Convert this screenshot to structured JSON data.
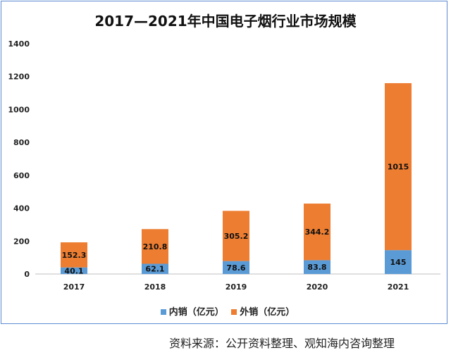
{
  "chart_data": {
    "type": "bar",
    "stacked": true,
    "title": "2017—2021年中国电子烟行业市场规模",
    "categories": [
      "2017",
      "2018",
      "2019",
      "2020",
      "2021"
    ],
    "series": [
      {
        "name": "内销（亿元）",
        "values": [
          40.1,
          62.1,
          78.6,
          83.8,
          145
        ],
        "color": "#5b9bd5"
      },
      {
        "name": "外销（亿元）",
        "values": [
          152.3,
          210.8,
          305.2,
          344.2,
          1015
        ],
        "color": "#ed7d31"
      }
    ],
    "ylim": [
      0,
      1400
    ],
    "yticks": [
      "0",
      "200",
      "400",
      "600",
      "800",
      "1000",
      "1200",
      "1400"
    ],
    "grid": false,
    "legend": "bottom"
  },
  "source": "资料来源：公开资料整理、观知海内咨询整理"
}
